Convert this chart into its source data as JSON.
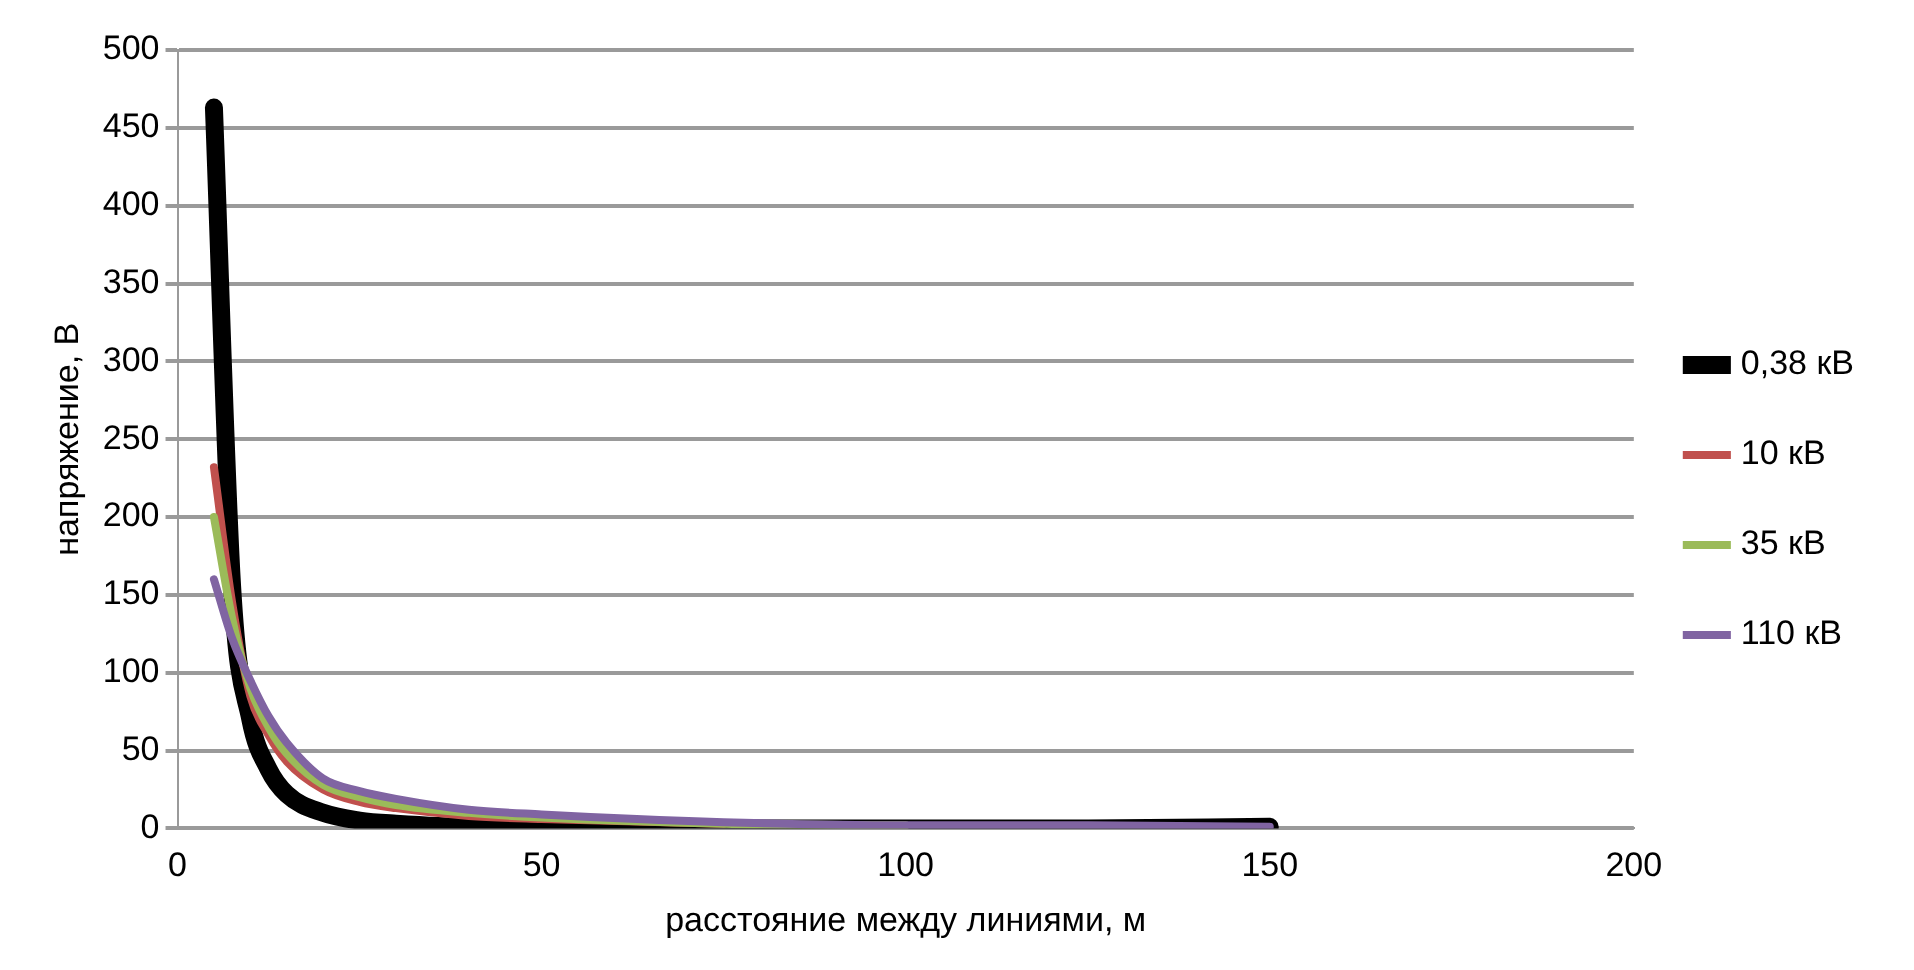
{
  "chart_data": {
    "type": "line",
    "xlabel": "расстояние между линиями, м",
    "ylabel": "напряжение, В",
    "xlim": [
      0,
      200
    ],
    "xticks": [
      0,
      50,
      100,
      150,
      200
    ],
    "ylim": [
      0,
      500
    ],
    "yticks": [
      0,
      50,
      100,
      150,
      200,
      250,
      300,
      350,
      400,
      450,
      500
    ],
    "grid": "y",
    "legend": "right",
    "marker": "none",
    "line_style": "solid",
    "series": [
      {
        "name": "0,38 кВ",
        "color": "#000000",
        "x": [
          5,
          7.5,
          10,
          12.5,
          15,
          20,
          25,
          30,
          40,
          50,
          75,
          100,
          125,
          150
        ],
        "values": [
          463,
          155,
          70,
          38,
          22,
          10,
          5,
          3,
          1,
          1,
          0,
          0,
          0,
          1
        ]
      },
      {
        "name": "10 кВ",
        "color": "#c0504d",
        "x": [
          5,
          7.5,
          10,
          12.5,
          15,
          20,
          25,
          30,
          40,
          50,
          75
        ],
        "values": [
          232,
          145,
          85,
          60,
          43,
          25,
          17,
          13,
          8,
          6,
          3
        ]
      },
      {
        "name": "35 кВ",
        "color": "#9bbb59",
        "x": [
          5,
          7.5,
          10,
          12.5,
          15,
          20,
          25,
          30,
          40,
          50,
          75,
          100
        ],
        "values": [
          200,
          135,
          90,
          65,
          48,
          28,
          20,
          15,
          10,
          7,
          3,
          2
        ]
      },
      {
        "name": "110 кВ",
        "color": "#8064a2",
        "x": [
          5,
          7.5,
          10,
          12.5,
          15,
          20,
          25,
          30,
          40,
          50,
          75,
          100,
          125,
          150
        ],
        "values": [
          160,
          122,
          95,
          72,
          55,
          32,
          24,
          19,
          12,
          9,
          4,
          2,
          2,
          1
        ]
      }
    ]
  }
}
